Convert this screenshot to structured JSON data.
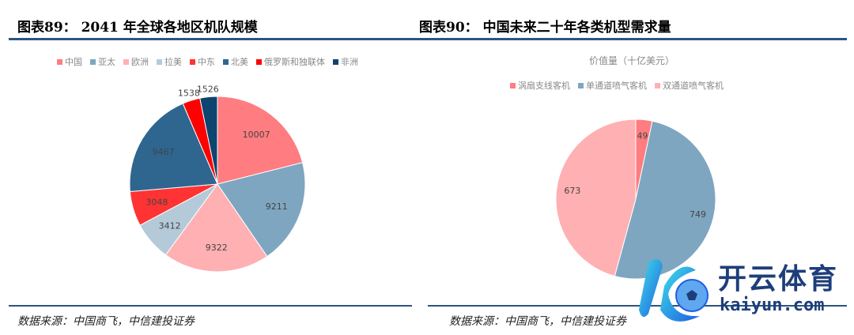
{
  "left": {
    "title": "图表89：  2041 年全球各地区机队规模",
    "source": "数据来源：中国商飞，中信建投证券",
    "legend": [
      {
        "label": "中国",
        "color": "#ff7c80"
      },
      {
        "label": "亚太",
        "color": "#7fa6c0"
      },
      {
        "label": "欧洲",
        "color": "#ffb0b3"
      },
      {
        "label": "拉美",
        "color": "#b4cad9"
      },
      {
        "label": "中东",
        "color": "#ff3333"
      },
      {
        "label": "北美",
        "color": "#2e6690"
      },
      {
        "label": "俄罗斯和独联体",
        "color": "#ff0000"
      },
      {
        "label": "非洲",
        "color": "#0e4470"
      }
    ]
  },
  "right": {
    "title": "图表90：  中国未来二十年各类机型需求量",
    "subtitle": "价值量（十亿美元）",
    "source": "数据来源：中国商飞，中信建投证券",
    "legend": [
      {
        "label": "涡扇支线客机",
        "color": "#ff7c80"
      },
      {
        "label": "单通道喷气客机",
        "color": "#7fa6c0"
      },
      {
        "label": "双通道喷气客机",
        "color": "#ffb0b3"
      }
    ]
  },
  "watermark": {
    "cn": "开云体育",
    "en": "kaiyun.com"
  },
  "chart_data": [
    {
      "type": "pie",
      "title": "2041 年全球各地区机队规模",
      "categories": [
        "中国",
        "亚太",
        "欧洲",
        "拉美",
        "中东",
        "北美",
        "俄罗斯和独联体",
        "非洲"
      ],
      "values": [
        10007,
        9211,
        9322,
        3412,
        3048,
        9467,
        1538,
        1526
      ],
      "colors": [
        "#ff7c80",
        "#7fa6c0",
        "#ffb0b3",
        "#b4cad9",
        "#ff3333",
        "#2e6690",
        "#ff0000",
        "#0e4470"
      ],
      "legend_position": "top",
      "start_angle": "12 o'clock, clockwise"
    },
    {
      "type": "pie",
      "title": "中国未来二十年各类机型需求量",
      "subtitle": "价值量（十亿美元）",
      "categories": [
        "涡扇支线客机",
        "单通道喷气客机",
        "双通道喷气客机"
      ],
      "values": [
        49,
        749,
        673
      ],
      "colors": [
        "#ff7c80",
        "#7fa6c0",
        "#ffb0b3"
      ],
      "legend_position": "top",
      "start_angle": "12 o'clock, clockwise"
    }
  ]
}
